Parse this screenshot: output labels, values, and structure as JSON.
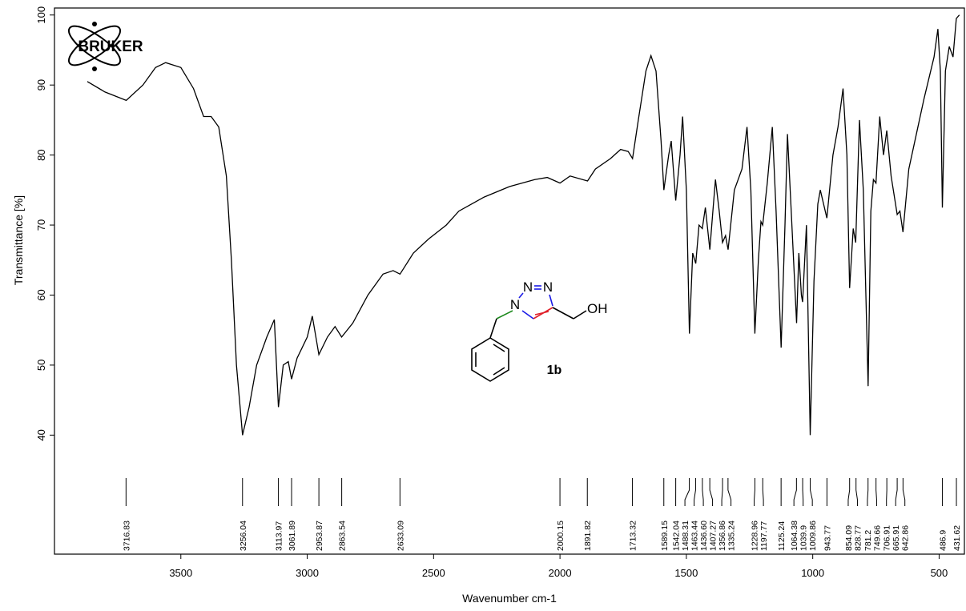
{
  "chart_data": {
    "type": "line",
    "logo": "BRUKER",
    "xlabel": "Wavenumber cm-1",
    "ylabel": "Transmittance [%]",
    "xlim": [
      4000,
      400
    ],
    "ylim": [
      23,
      101
    ],
    "xticks": [
      3500,
      3000,
      2500,
      2000,
      1500,
      1000,
      500
    ],
    "yticks": [
      40,
      50,
      60,
      70,
      80,
      90,
      100
    ],
    "color": "#000000",
    "x": [
      3870,
      3800,
      3716,
      3650,
      3600,
      3560,
      3500,
      3450,
      3410,
      3380,
      3350,
      3320,
      3300,
      3280,
      3256,
      3230,
      3200,
      3160,
      3130,
      3114,
      3095,
      3075,
      3062,
      3040,
      3000,
      2980,
      2954,
      2920,
      2890,
      2864,
      2820,
      2760,
      2700,
      2660,
      2633,
      2580,
      2520,
      2450,
      2400,
      2300,
      2200,
      2100,
      2050,
      2000,
      1960,
      1891,
      1860,
      1800,
      1760,
      1730,
      1713,
      1690,
      1660,
      1640,
      1620,
      1600,
      1589,
      1570,
      1560,
      1542,
      1525,
      1515,
      1500,
      1488,
      1475,
      1463,
      1450,
      1437,
      1425,
      1407,
      1395,
      1385,
      1370,
      1357,
      1345,
      1335,
      1310,
      1280,
      1260,
      1245,
      1229,
      1215,
      1205,
      1198,
      1180,
      1160,
      1145,
      1125,
      1110,
      1100,
      1085,
      1064,
      1055,
      1045,
      1040,
      1025,
      1010,
      995,
      980,
      970,
      944,
      920,
      900,
      880,
      865,
      854,
      840,
      830,
      815,
      800,
      781,
      770,
      760,
      750,
      735,
      720,
      707,
      690,
      666,
      655,
      643,
      620,
      560,
      520,
      505,
      495,
      487,
      475,
      460,
      445,
      432,
      420
    ],
    "values": [
      90.5,
      89,
      87.8,
      90,
      92.5,
      93.2,
      92.5,
      89.5,
      85.5,
      85.5,
      84,
      77,
      65,
      50,
      40,
      44,
      50,
      54,
      56.5,
      44,
      50,
      50.5,
      48,
      51,
      54,
      57,
      51.5,
      54,
      55.5,
      54,
      56,
      60,
      63,
      63.5,
      63,
      66,
      68,
      70,
      72,
      74,
      75.5,
      76.5,
      76.8,
      76,
      77,
      76.3,
      78,
      79.5,
      80.8,
      80.5,
      79.5,
      85,
      92,
      94.2,
      92,
      82,
      75,
      80,
      82,
      73.5,
      80,
      85.5,
      75,
      54.5,
      66,
      64.5,
      70,
      69.5,
      72.5,
      66.5,
      72,
      76.5,
      72,
      67.5,
      68.5,
      66.5,
      75,
      78,
      84,
      75,
      54.5,
      65,
      70.5,
      70,
      76,
      84,
      72,
      52.5,
      70,
      83,
      72,
      56,
      66,
      60,
      59,
      70,
      40,
      62,
      73,
      75,
      71,
      80,
      84,
      89.5,
      80,
      61,
      69.5,
      67.5,
      85,
      75,
      47,
      72,
      76.5,
      76,
      85.5,
      80,
      83.5,
      77,
      71.5,
      72,
      69,
      78,
      88,
      94,
      98,
      92,
      72.5,
      92,
      95.5,
      94,
      99.5,
      100
    ],
    "peaks": [
      3716.83,
      3256.04,
      3113.97,
      3061.89,
      2953.87,
      2863.54,
      2633.09,
      2000.15,
      1891.82,
      1713.32,
      1589.15,
      1542.04,
      1488.31,
      1463.44,
      {
        "value": 1436.6,
        "label": "1436.60"
      },
      1407.27,
      1356.86,
      1335.24,
      1228.96,
      1197.77,
      1125.24,
      1064.38,
      1039.9,
      1009.86,
      943.77,
      854.09,
      828.77,
      781.2,
      749.66,
      706.91,
      665.91,
      642.86,
      486.9,
      431.62
    ],
    "structure": {
      "atoms": [
        "N",
        "N",
        "N",
        "OH"
      ],
      "compound": "1b"
    }
  }
}
